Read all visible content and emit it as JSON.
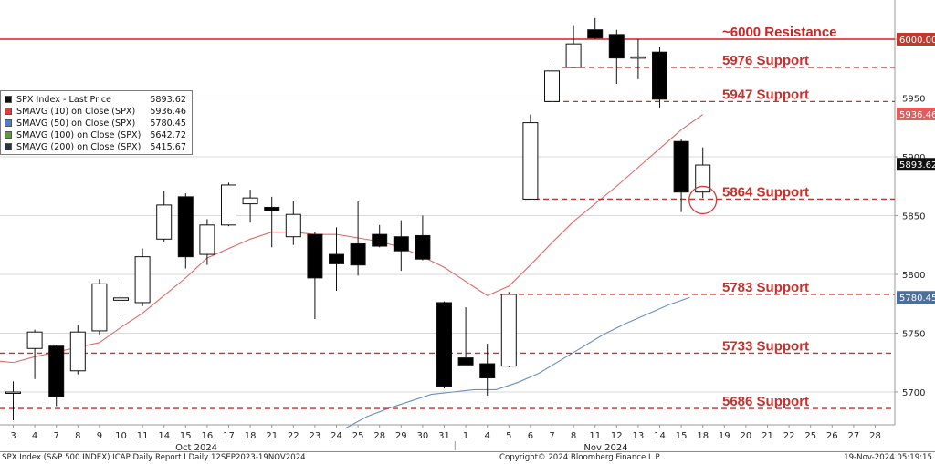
{
  "chart_data": {
    "type": "candlestick",
    "y_range": [
      5665,
      6030
    ],
    "y_ticks": [
      5700,
      5750,
      5800,
      5850,
      5900,
      5950,
      6000
    ],
    "day_labels": [
      "3",
      "4",
      "7",
      "8",
      "9",
      "10",
      "11",
      "14",
      "15",
      "16",
      "17",
      "18",
      "21",
      "22",
      "23",
      "24",
      "25",
      "28",
      "29",
      "30",
      "31",
      "1",
      "4",
      "5",
      "6",
      "7",
      "8",
      "11",
      "12",
      "13",
      "14",
      "15",
      "18",
      "19",
      "20",
      "21",
      "22",
      "25",
      "26",
      "27",
      "28"
    ],
    "month_labels": [
      {
        "label": "Oct 2024",
        "day_index": 8.5
      },
      {
        "label": "Nov 2024",
        "day_index": 27.5
      }
    ],
    "candles": [
      {
        "o": 5699,
        "h": 5709,
        "l": 5676,
        "c": 5700
      },
      {
        "o": 5737,
        "h": 5753,
        "l": 5711,
        "c": 5751
      },
      {
        "o": 5739,
        "h": 5740,
        "l": 5688,
        "c": 5696
      },
      {
        "o": 5718,
        "h": 5757,
        "l": 5715,
        "c": 5751
      },
      {
        "o": 5752,
        "h": 5796,
        "l": 5749,
        "c": 5792
      },
      {
        "o": 5778,
        "h": 5794,
        "l": 5765,
        "c": 5780
      },
      {
        "o": 5776,
        "h": 5822,
        "l": 5773,
        "c": 5815
      },
      {
        "o": 5830,
        "h": 5871,
        "l": 5828,
        "c": 5859
      },
      {
        "o": 5866,
        "h": 5869,
        "l": 5805,
        "c": 5815
      },
      {
        "o": 5817,
        "h": 5847,
        "l": 5808,
        "c": 5842
      },
      {
        "o": 5842,
        "h": 5878,
        "l": 5841,
        "c": 5876
      },
      {
        "o": 5860,
        "h": 5872,
        "l": 5844,
        "c": 5865
      },
      {
        "o": 5857,
        "h": 5866,
        "l": 5823,
        "c": 5854
      },
      {
        "o": 5832,
        "h": 5862,
        "l": 5825,
        "c": 5851
      },
      {
        "o": 5834,
        "h": 5836,
        "l": 5762,
        "c": 5797
      },
      {
        "o": 5817,
        "h": 5840,
        "l": 5786,
        "c": 5809
      },
      {
        "o": 5826,
        "h": 5862,
        "l": 5799,
        "c": 5808
      },
      {
        "o": 5834,
        "h": 5842,
        "l": 5823,
        "c": 5824
      },
      {
        "o": 5832,
        "h": 5846,
        "l": 5803,
        "c": 5820
      },
      {
        "o": 5833,
        "h": 5850,
        "l": 5812,
        "c": 5813
      },
      {
        "o": 5776,
        "h": 5777,
        "l": 5703,
        "c": 5705
      },
      {
        "o": 5729,
        "h": 5772,
        "l": 5723,
        "c": 5723
      },
      {
        "o": 5724,
        "h": 5741,
        "l": 5697,
        "c": 5712
      },
      {
        "o": 5722,
        "h": 5785,
        "l": 5721,
        "c": 5783
      },
      {
        "o": 5864,
        "h": 5936,
        "l": 5864,
        "c": 5929
      },
      {
        "o": 5947,
        "h": 5983,
        "l": 5947,
        "c": 5973
      },
      {
        "o": 5976,
        "h": 6012,
        "l": 5976,
        "c": 5996
      },
      {
        "o": 6008,
        "h": 6018,
        "l": 6000,
        "c": 6001
      },
      {
        "o": 6004,
        "h": 6008,
        "l": 5962,
        "c": 5984
      },
      {
        "o": 5985,
        "h": 6000,
        "l": 5966,
        "c": 5985
      },
      {
        "o": 5989,
        "h": 5993,
        "l": 5942,
        "c": 5949
      },
      {
        "o": 5913,
        "h": 5915,
        "l": 5853,
        "c": 5870
      },
      {
        "o": 5870,
        "h": 5908,
        "l": 5865,
        "c": 5893
      }
    ],
    "sma10": [
      5727,
      5725,
      5730,
      5734,
      5738,
      5742,
      5755,
      5767,
      5782,
      5797,
      5814,
      5822,
      5830,
      5836,
      5836,
      5834,
      5834,
      5831,
      5828,
      5823,
      5815,
      5806,
      5794,
      5782,
      5790,
      5808,
      5827,
      5845,
      5860,
      5875,
      5891,
      5907,
      5923,
      5936
    ],
    "sma50": [
      5669,
      5679,
      5686,
      5692,
      5698,
      5700,
      5702,
      5702,
      5708,
      5716,
      5727,
      5738,
      5749,
      5758,
      5766,
      5774,
      5780.45
    ],
    "sma50_start_index": 16,
    "levels": [
      {
        "label": "~6000 Resistance",
        "value": 6000,
        "style": "solid"
      },
      {
        "label": "5976 Support",
        "value": 5976,
        "style": "dashed"
      },
      {
        "label": "5947 Support",
        "value": 5947,
        "style": "dashed"
      },
      {
        "label": "5864 Support",
        "value": 5864,
        "style": "dashed"
      },
      {
        "label": "5783 Support",
        "value": 5783,
        "style": "dashed"
      },
      {
        "label": "5733 Support",
        "value": 5733,
        "style": "dashed"
      },
      {
        "label": "5686 Support",
        "value": 5686,
        "style": "dashed"
      }
    ],
    "price_badges": [
      {
        "text": "6000.00",
        "value": 6000,
        "color": "#c0392b",
        "text_color": "#ffffff"
      },
      {
        "text": "5936.46",
        "value": 5936.46,
        "color": "#e45b5b",
        "text_color": "#ffffff"
      },
      {
        "text": "5893.62",
        "value": 5893.62,
        "color": "#111111",
        "text_color": "#ffffff"
      },
      {
        "text": "5780.45",
        "value": 5780.45,
        "color": "#4d6f9a",
        "text_color": "#ffffff"
      }
    ],
    "highlight": {
      "day_index": 32,
      "value": 5864
    }
  },
  "legend": {
    "items": [
      {
        "label": "SPX Index - Last Price",
        "value": "5893.62",
        "color": "#111111"
      },
      {
        "label": "SMAVG (10)  on Close (SPX)",
        "value": "5936.46",
        "color": "#e23b3b"
      },
      {
        "label": "SMAVG (50)  on Close (SPX)",
        "value": "5780.45",
        "color": "#4f7fc3"
      },
      {
        "label": "SMAVG (100)  on Close (SPX)",
        "value": "5642.72",
        "color": "#5a9a3a"
      },
      {
        "label": "SMAVG (200)  on Close (SPX)",
        "value": "5415.67",
        "color": "#2b3346"
      }
    ]
  },
  "colors": {
    "resistance": "#d42020",
    "support": "#c9302c",
    "sma10": "#e06a6a",
    "sma50": "#6b8fbf"
  },
  "footer": {
    "left": "SPX Index (S&P 500 INDEX) ICAP Daily Report I  Daily 12SEP2023-19NOV2024",
    "center": "Copyright© 2024 Bloomberg Finance L.P.",
    "right": "19-Nov-2024 05:19:15"
  }
}
